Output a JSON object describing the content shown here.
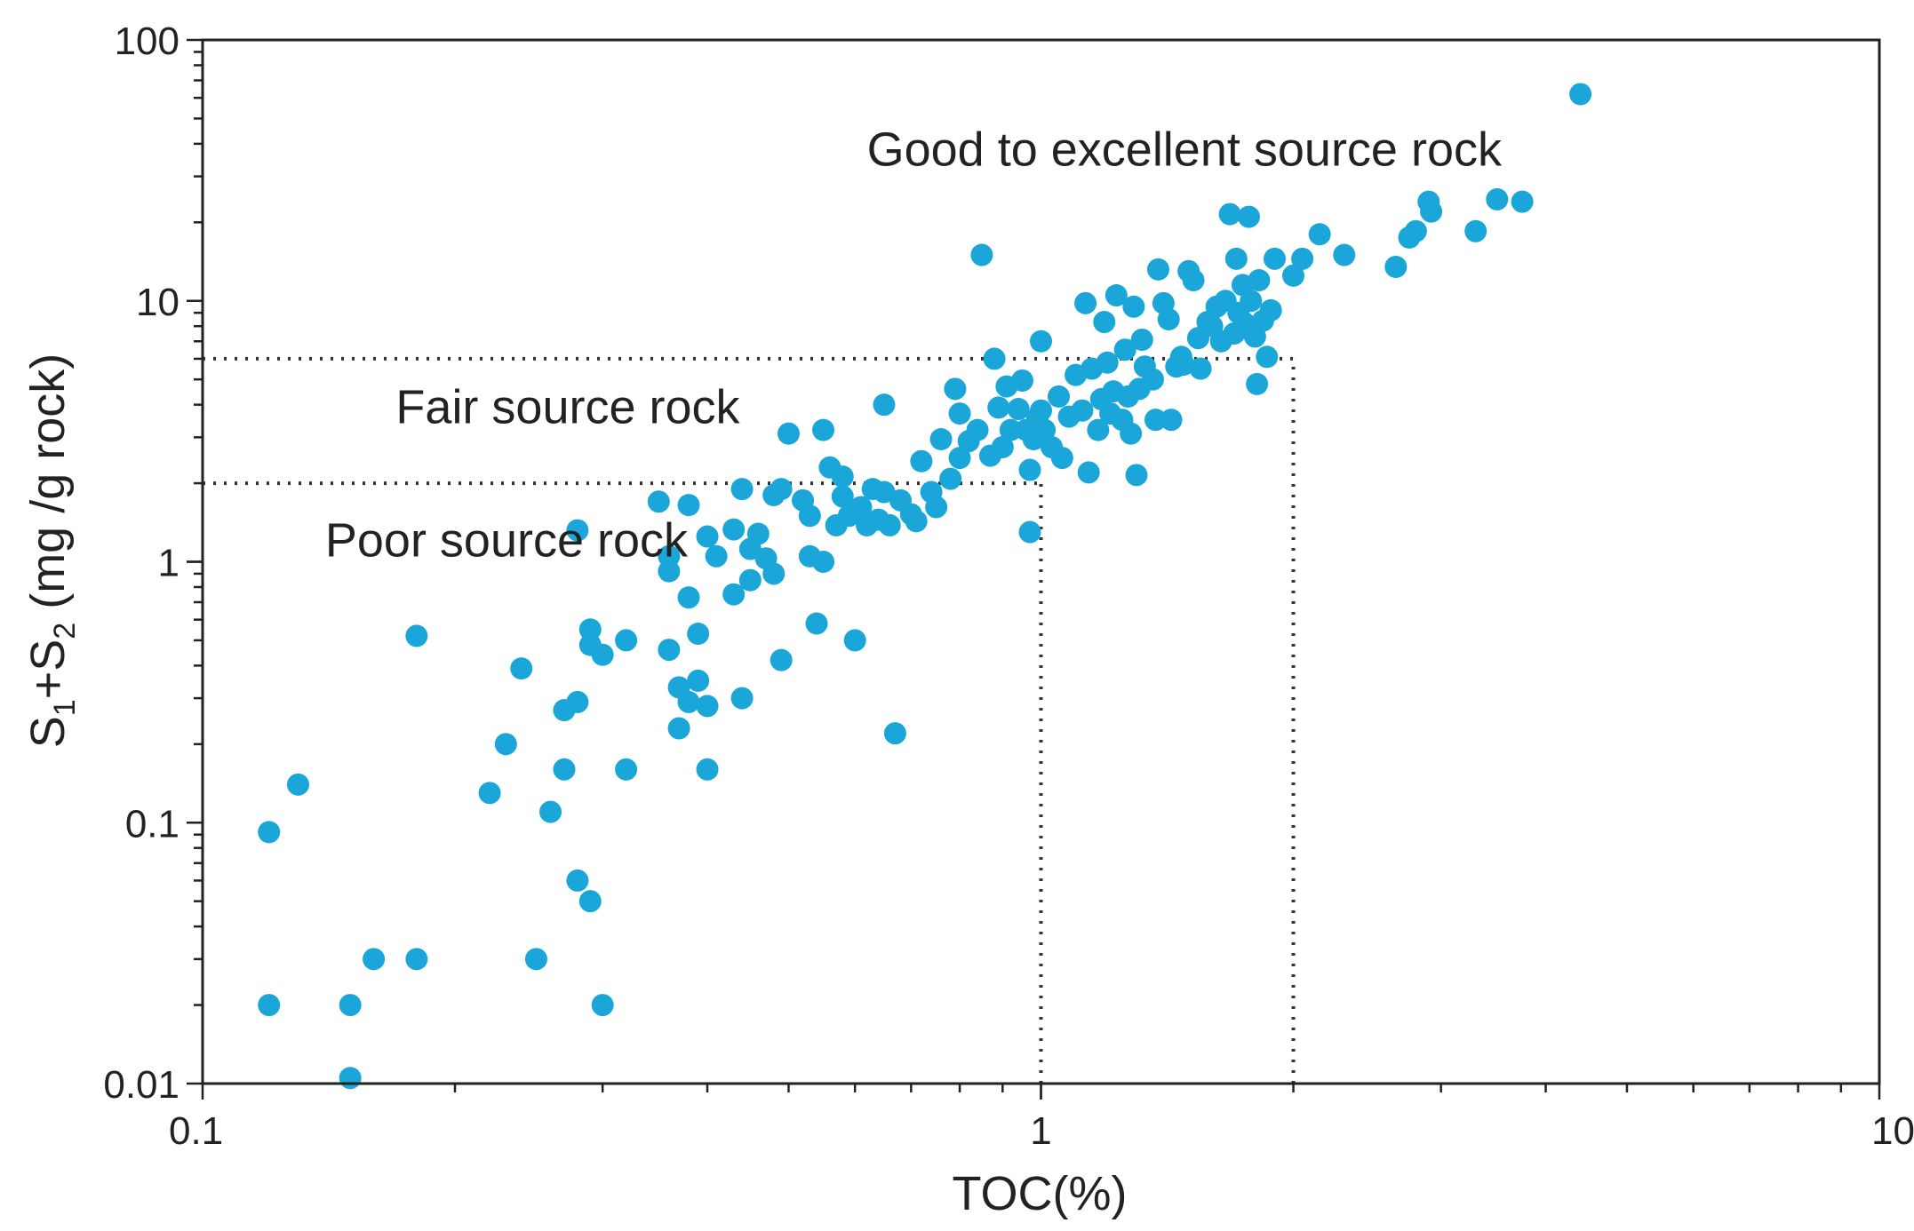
{
  "chart_data": {
    "type": "scatter",
    "x_scale": "log",
    "y_scale": "log",
    "xlim": [
      0.1,
      10
    ],
    "ylim": [
      0.01,
      100
    ],
    "xlabel": "TOC(%)",
    "ylabel_parts": {
      "s1": "S",
      "sub1": "1",
      "plus": "+S",
      "sub2": "2",
      "rest": " (mg /g rock)"
    },
    "x_tick_labels": [
      "0.1",
      "1",
      "10"
    ],
    "y_tick_labels": [
      "0.01",
      "0.1",
      "1",
      "10",
      "100"
    ],
    "x_ticks": [
      0.1,
      1,
      10
    ],
    "y_ticks": [
      0.01,
      0.1,
      1,
      10,
      100
    ],
    "grid": false,
    "legend": "none",
    "marker_color": "#1aa6d8",
    "thresholds": {
      "horizontal": [
        {
          "y": 2,
          "x_from": 0.1,
          "x_to": 1
        },
        {
          "y": 6,
          "x_from": 0.1,
          "x_to": 2
        }
      ],
      "vertical": [
        {
          "x": 1,
          "y_from": 0.01,
          "y_to": 2
        },
        {
          "x": 2,
          "y_from": 0.01,
          "y_to": 6
        }
      ]
    },
    "regions": [
      {
        "label": "Good to excellent source rock",
        "x": 0.62,
        "y": 33
      },
      {
        "label": "Fair source rock",
        "x": 0.17,
        "y": 3.4
      },
      {
        "label": "Poor source rock",
        "x": 0.14,
        "y": 1.05
      }
    ],
    "points": [
      [
        0.12,
        0.092
      ],
      [
        0.12,
        0.02
      ],
      [
        0.13,
        0.14
      ],
      [
        0.15,
        0.02
      ],
      [
        0.15,
        0.0105
      ],
      [
        0.16,
        0.03
      ],
      [
        0.18,
        0.03
      ],
      [
        0.18,
        0.52
      ],
      [
        0.22,
        0.13
      ],
      [
        0.23,
        0.2
      ],
      [
        0.24,
        0.39
      ],
      [
        0.25,
        0.03
      ],
      [
        0.26,
        0.11
      ],
      [
        0.27,
        0.16
      ],
      [
        0.27,
        0.27
      ],
      [
        0.28,
        0.29
      ],
      [
        0.28,
        0.06
      ],
      [
        0.29,
        0.05
      ],
      [
        0.29,
        0.55
      ],
      [
        0.29,
        0.48
      ],
      [
        0.3,
        0.02
      ],
      [
        0.3,
        0.44
      ],
      [
        0.32,
        0.5
      ],
      [
        0.32,
        0.16
      ],
      [
        0.28,
        1.32
      ],
      [
        0.35,
        1.7
      ],
      [
        0.36,
        1.05
      ],
      [
        0.36,
        0.92
      ],
      [
        0.36,
        0.46
      ],
      [
        0.37,
        0.23
      ],
      [
        0.37,
        0.33
      ],
      [
        0.38,
        0.73
      ],
      [
        0.38,
        0.29
      ],
      [
        0.38,
        1.65
      ],
      [
        0.39,
        0.53
      ],
      [
        0.39,
        0.35
      ],
      [
        0.4,
        0.16
      ],
      [
        0.4,
        0.28
      ],
      [
        0.4,
        1.25
      ],
      [
        0.41,
        1.05
      ],
      [
        0.43,
        0.75
      ],
      [
        0.43,
        1.33
      ],
      [
        0.44,
        1.9
      ],
      [
        0.44,
        0.3
      ],
      [
        0.45,
        0.85
      ],
      [
        0.45,
        1.12
      ],
      [
        0.46,
        1.28
      ],
      [
        0.47,
        1.03
      ],
      [
        0.48,
        1.8
      ],
      [
        0.48,
        0.9
      ],
      [
        0.49,
        1.9
      ],
      [
        0.49,
        0.42
      ],
      [
        0.5,
        3.1
      ],
      [
        0.52,
        1.72
      ],
      [
        0.53,
        1.5
      ],
      [
        0.53,
        1.05
      ],
      [
        0.54,
        0.58
      ],
      [
        0.55,
        1.0
      ],
      [
        0.55,
        3.2
      ],
      [
        0.56,
        2.3
      ],
      [
        0.57,
        1.38
      ],
      [
        0.58,
        1.78
      ],
      [
        0.58,
        2.12
      ],
      [
        0.59,
        1.5
      ],
      [
        0.6,
        0.5
      ],
      [
        0.61,
        1.62
      ],
      [
        0.62,
        1.38
      ],
      [
        0.63,
        1.9
      ],
      [
        0.64,
        1.45
      ],
      [
        0.65,
        4.0
      ],
      [
        0.65,
        1.85
      ],
      [
        0.66,
        1.38
      ],
      [
        0.67,
        0.22
      ],
      [
        0.68,
        1.72
      ],
      [
        0.7,
        1.52
      ],
      [
        0.71,
        1.43
      ],
      [
        0.72,
        2.43
      ],
      [
        0.74,
        1.85
      ],
      [
        0.75,
        1.62
      ],
      [
        0.76,
        2.95
      ],
      [
        0.78,
        2.08
      ],
      [
        0.79,
        4.6
      ],
      [
        0.8,
        2.5
      ],
      [
        0.8,
        3.7
      ],
      [
        0.82,
        2.9
      ],
      [
        0.84,
        3.2
      ],
      [
        0.85,
        15.0
      ],
      [
        0.87,
        2.55
      ],
      [
        0.88,
        6.0
      ],
      [
        0.89,
        3.9
      ],
      [
        0.9,
        2.75
      ],
      [
        0.91,
        4.7
      ],
      [
        0.92,
        3.2
      ],
      [
        0.94,
        3.85
      ],
      [
        0.95,
        4.95
      ],
      [
        0.96,
        3.2
      ],
      [
        0.97,
        1.3
      ],
      [
        0.97,
        2.25
      ],
      [
        0.98,
        2.95
      ],
      [
        0.99,
        3.55
      ],
      [
        1.0,
        3.8
      ],
      [
        1.0,
        7.0
      ],
      [
        1.01,
        3.2
      ],
      [
        1.03,
        2.75
      ],
      [
        1.05,
        4.3
      ],
      [
        1.06,
        2.5
      ],
      [
        1.08,
        3.6
      ],
      [
        1.1,
        5.2
      ],
      [
        1.12,
        3.8
      ],
      [
        1.13,
        9.8
      ],
      [
        1.14,
        2.2
      ],
      [
        1.15,
        5.5
      ],
      [
        1.17,
        3.2
      ],
      [
        1.18,
        4.2
      ],
      [
        1.19,
        8.3
      ],
      [
        1.2,
        5.8
      ],
      [
        1.21,
        3.7
      ],
      [
        1.22,
        4.5
      ],
      [
        1.23,
        10.5
      ],
      [
        1.25,
        3.5
      ],
      [
        1.26,
        6.5
      ],
      [
        1.27,
        4.3
      ],
      [
        1.28,
        3.1
      ],
      [
        1.29,
        9.5
      ],
      [
        1.3,
        2.15
      ],
      [
        1.31,
        4.6
      ],
      [
        1.32,
        7.1
      ],
      [
        1.33,
        5.6
      ],
      [
        1.36,
        5.0
      ],
      [
        1.37,
        3.5
      ],
      [
        1.38,
        13.2
      ],
      [
        1.4,
        9.8
      ],
      [
        1.42,
        8.5
      ],
      [
        1.43,
        3.5
      ],
      [
        1.45,
        5.6
      ],
      [
        1.47,
        6.1
      ],
      [
        1.48,
        5.7
      ],
      [
        1.5,
        13.0
      ],
      [
        1.52,
        12.0
      ],
      [
        1.54,
        7.2
      ],
      [
        1.55,
        5.5
      ],
      [
        1.58,
        8.3
      ],
      [
        1.6,
        8.0
      ],
      [
        1.62,
        9.5
      ],
      [
        1.64,
        7.0
      ],
      [
        1.66,
        10.0
      ],
      [
        1.68,
        21.5
      ],
      [
        1.7,
        7.5
      ],
      [
        1.71,
        14.5
      ],
      [
        1.72,
        9.0
      ],
      [
        1.74,
        11.5
      ],
      [
        1.75,
        8.2
      ],
      [
        1.77,
        21.0
      ],
      [
        1.78,
        10.0
      ],
      [
        1.8,
        7.3
      ],
      [
        1.81,
        4.8
      ],
      [
        1.82,
        12.0
      ],
      [
        1.84,
        8.4
      ],
      [
        1.86,
        6.1
      ],
      [
        1.88,
        9.2
      ],
      [
        1.9,
        14.5
      ],
      [
        2.0,
        12.5
      ],
      [
        2.05,
        14.5
      ],
      [
        2.15,
        18.0
      ],
      [
        2.3,
        15.0
      ],
      [
        2.65,
        13.5
      ],
      [
        2.75,
        17.5
      ],
      [
        2.8,
        18.5
      ],
      [
        2.9,
        24.0
      ],
      [
        2.92,
        22.0
      ],
      [
        3.3,
        18.5
      ],
      [
        3.5,
        24.5
      ],
      [
        3.75,
        24.0
      ],
      [
        4.4,
        62.0
      ]
    ]
  }
}
